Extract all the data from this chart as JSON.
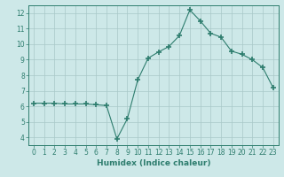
{
  "x": [
    0,
    1,
    2,
    3,
    4,
    5,
    6,
    7,
    8,
    9,
    10,
    11,
    12,
    13,
    14,
    15,
    16,
    17,
    18,
    19,
    20,
    21,
    22,
    23
  ],
  "y": [
    6.2,
    6.2,
    6.2,
    6.15,
    6.15,
    6.15,
    6.1,
    6.05,
    3.9,
    5.2,
    7.7,
    9.1,
    9.5,
    9.85,
    10.55,
    12.2,
    11.5,
    10.7,
    10.45,
    9.55,
    9.35,
    9.0,
    8.5,
    7.2
  ],
  "line_color": "#2e7d6e",
  "marker": "+",
  "marker_size": 4,
  "marker_lw": 1.2,
  "bg_color": "#cde8e8",
  "grid_color": "#a8c8c8",
  "xlabel": "Humidex (Indice chaleur)",
  "xlim": [
    -0.5,
    23.5
  ],
  "ylim": [
    3.5,
    12.5
  ],
  "yticks": [
    4,
    5,
    6,
    7,
    8,
    9,
    10,
    11,
    12
  ],
  "xticks": [
    0,
    1,
    2,
    3,
    4,
    5,
    6,
    7,
    8,
    9,
    10,
    11,
    12,
    13,
    14,
    15,
    16,
    17,
    18,
    19,
    20,
    21,
    22,
    23
  ],
  "tick_label_fontsize": 5.5,
  "xlabel_fontsize": 6.5,
  "axis_color": "#2e7d6e",
  "line_width": 0.8
}
